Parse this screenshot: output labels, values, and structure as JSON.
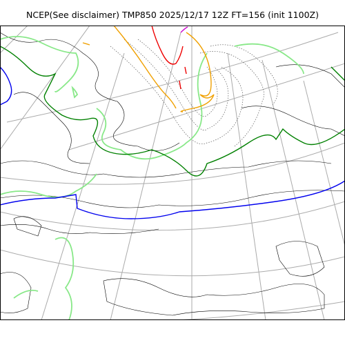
{
  "title": "NCEP(See disclaimer) TMP850 2025/12/17 12Z FT=156 (init 1100Z)",
  "colors": {
    "coastline": "#000000",
    "graticule": "#aaaaaa",
    "isotherm_dotted": "#555555",
    "contour_light_green": "#88e888",
    "contour_dark_green": "#008000",
    "contour_blue": "#0000ee",
    "contour_orange": "#f0a000",
    "contour_red": "#ee0000",
    "contour_magenta": "#cc00cc"
  }
}
